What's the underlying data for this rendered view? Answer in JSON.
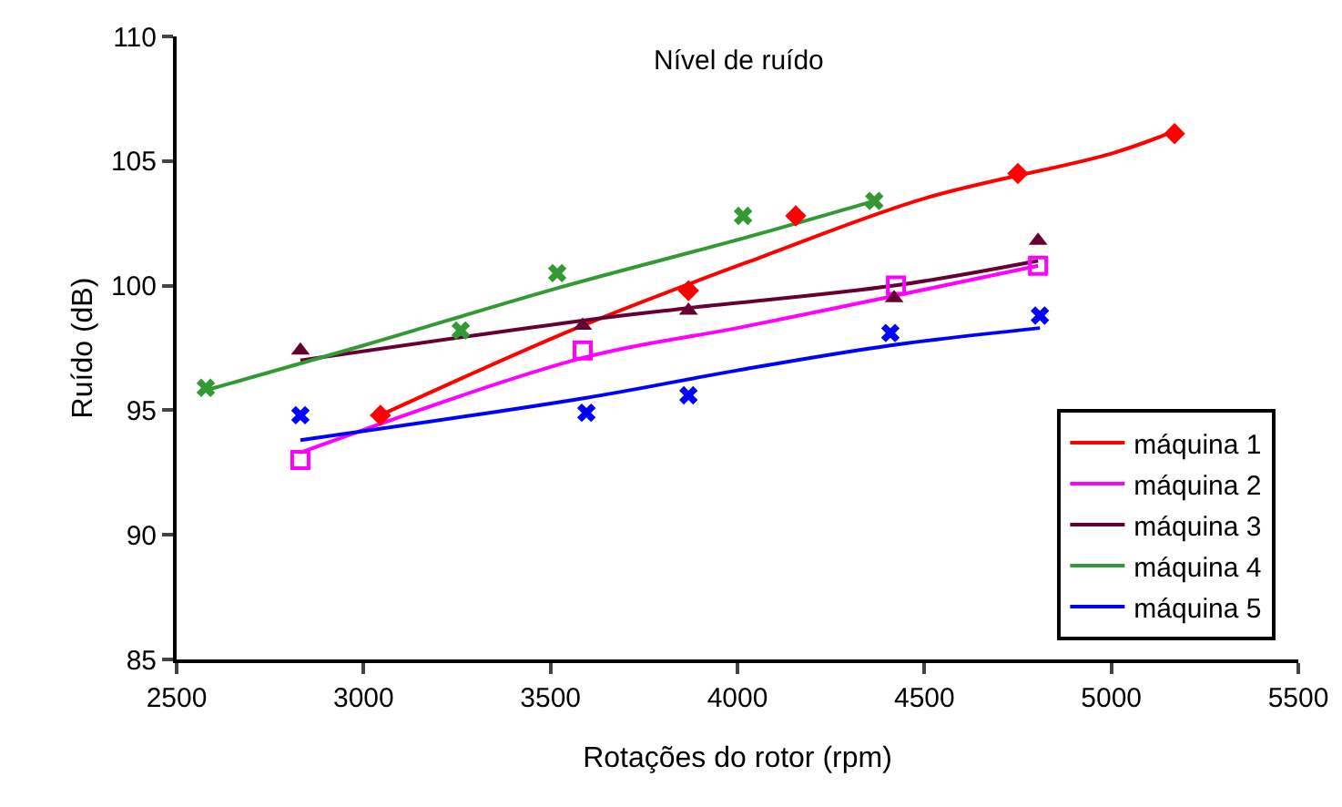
{
  "chart_data": {
    "type": "scatter",
    "title": "Nível de ruído",
    "xlabel": "Rotações do rotor (rpm)",
    "ylabel": "Ruído (dB)",
    "xlim": [
      2500,
      5500
    ],
    "xticks": [
      2500,
      3000,
      3500,
      4000,
      4500,
      5000,
      5500
    ],
    "ylim": [
      85,
      110
    ],
    "yticks": [
      85,
      90,
      95,
      100,
      105,
      110
    ],
    "grid": false,
    "legend": "bottom right",
    "series": [
      {
        "color": "#ff0000",
        "marker": "diamond",
        "x": [
          3045,
          3869,
          4156,
          4750,
          5169
        ],
        "values": [
          94.8,
          99.8,
          102.8,
          104.5,
          106.1
        ]
      },
      {
        "color": "#ff00ff",
        "marker": "square",
        "x": [
          2831,
          3586,
          4424,
          4804
        ],
        "values": [
          93.0,
          97.4,
          100.0,
          100.8
        ]
      },
      {
        "color": "#660033",
        "marker": "triangle",
        "x": [
          2831,
          3586,
          3869,
          4419,
          4804
        ],
        "values": [
          97.4,
          98.4,
          99.0,
          99.5,
          101.8
        ]
      },
      {
        "color": "#339933",
        "marker": "cross",
        "x": [
          2578,
          3260,
          3518,
          4015,
          4366
        ],
        "values": [
          95.9,
          98.2,
          100.5,
          102.8,
          103.4
        ]
      },
      {
        "color": "#0000ff",
        "marker": "cross",
        "x": [
          2831,
          3596,
          3869,
          4409,
          4809
        ],
        "values": [
          94.8,
          94.9,
          95.6,
          98.1,
          98.8
        ]
      },
      {
        "type": "line",
        "name": "máquina 1",
        "color": "#ff0000",
        "x": [
          3045,
          3586,
          4073,
          4500,
          5000,
          5169
        ],
        "values": [
          94.8,
          98.4,
          101.2,
          103.5,
          105.3,
          106.2
        ]
      },
      {
        "type": "line",
        "name": "máquina 2",
        "color": "#ff00ff",
        "x": [
          2831,
          3586,
          4000,
          4424,
          4804
        ],
        "values": [
          93.3,
          97.1,
          98.3,
          99.6,
          100.8
        ]
      },
      {
        "type": "line",
        "name": "máquina 3",
        "color": "#660033",
        "x": [
          2831,
          3586,
          3869,
          4419,
          4804
        ],
        "values": [
          97.0,
          98.6,
          99.1,
          100.0,
          101.0
        ]
      },
      {
        "type": "line",
        "name": "máquina 4",
        "color": "#339933",
        "x": [
          2578,
          3000,
          3518,
          4015,
          4366
        ],
        "values": [
          95.8,
          97.6,
          99.9,
          101.9,
          103.4
        ]
      },
      {
        "type": "line",
        "name": "máquina 5",
        "color": "#0000ff",
        "x": [
          2831,
          3596,
          4000,
          4409,
          4809
        ],
        "values": [
          93.8,
          95.5,
          96.6,
          97.6,
          98.3
        ]
      }
    ]
  }
}
